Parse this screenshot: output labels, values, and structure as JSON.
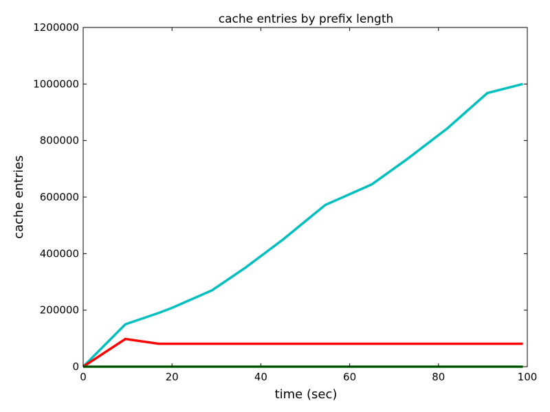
{
  "chart_data": {
    "type": "line",
    "title": "cache entries by prefix length",
    "xlabel": "time (sec)",
    "ylabel": "cache entries",
    "xlim": [
      0,
      100
    ],
    "ylim": [
      0,
      1200000
    ],
    "xticks": [
      0,
      20,
      40,
      60,
      80,
      100
    ],
    "yticks": [
      0,
      200000,
      400000,
      600000,
      800000,
      1000000,
      1200000
    ],
    "x_tick_labels": [
      "0",
      "20",
      "40",
      "60",
      "80",
      "100"
    ],
    "y_tick_labels": [
      "0",
      "200000",
      "400000",
      "600000",
      "800000",
      "1000000",
      "1200000"
    ],
    "grid": false,
    "legend": false,
    "series": [
      {
        "color": "#00bfbf",
        "x": [
          0,
          9.5,
          17,
          20,
          29,
          36.5,
          45,
          54.5,
          65,
          73,
          82,
          91,
          99
        ],
        "y": [
          0,
          150000,
          190000,
          208000,
          270000,
          350000,
          450000,
          572000,
          645000,
          735000,
          843000,
          968000,
          1000000
        ]
      },
      {
        "color": "#ff0000",
        "x": [
          0,
          9.5,
          17,
          20,
          29,
          36.5,
          45,
          54.5,
          65,
          73,
          82,
          91,
          99
        ],
        "y": [
          0,
          98000,
          81000,
          81000,
          81000,
          81000,
          81000,
          81000,
          81000,
          81000,
          81000,
          81000,
          81000
        ]
      },
      {
        "color": "#008000",
        "x": [
          0,
          9.5,
          17,
          20,
          29,
          36.5,
          45,
          54.5,
          65,
          73,
          82,
          91,
          99
        ],
        "y": [
          0,
          0,
          0,
          0,
          0,
          0,
          0,
          0,
          0,
          0,
          0,
          0,
          0
        ]
      }
    ]
  }
}
